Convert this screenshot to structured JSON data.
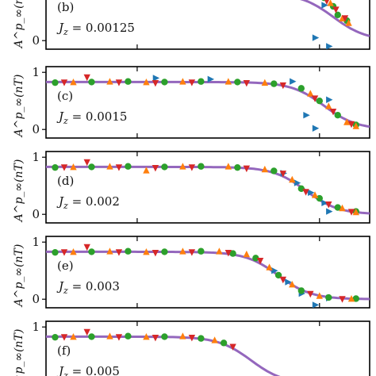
{
  "chart_data": [
    {
      "type": "scatter",
      "panel_label": "(b)",
      "annotation": "J_z = 0.00125",
      "annotation_var": "J",
      "annotation_sub": "z",
      "annotation_val": "= 0.00125",
      "ylabel": "A^p_∞(nT)",
      "yticks": [
        "0"
      ],
      "ylim": [
        -0.15,
        1.1
      ],
      "fit_curve": {
        "plateau": 0.83,
        "x0": 3.15,
        "width": 0.18
      },
      "series": [
        {
          "name": "",
          "marker": "triangle-right",
          "color": "#1f77b4",
          "points": [
            [
              2.85,
              0.92
            ],
            [
              2.95,
              0.05
            ],
            [
              3.05,
              0.62
            ],
            [
              3.1,
              -0.1
            ]
          ]
        },
        {
          "name": "",
          "marker": "circle",
          "color": "#2ca02c",
          "points": [
            [
              3.05,
              0.75
            ],
            [
              3.15,
              0.6
            ],
            [
              3.2,
              0.45
            ],
            [
              3.3,
              0.35
            ]
          ]
        },
        {
          "name": "",
          "marker": "triangle-up",
          "color": "#ff7f0e",
          "points": [
            [
              3.12,
              0.65
            ],
            [
              3.25,
              0.38
            ],
            [
              3.32,
              0.3
            ]
          ]
        },
        {
          "name": "",
          "marker": "triangle-down",
          "color": "#d62728",
          "points": [
            [
              3.08,
              0.7
            ],
            [
              3.18,
              0.55
            ],
            [
              3.28,
              0.4
            ]
          ]
        }
      ]
    },
    {
      "type": "scatter",
      "panel_label": "(c)",
      "annotation": "J_z = 0.0015",
      "annotation_var": "J",
      "annotation_sub": "z",
      "annotation_val": "= 0.0015",
      "ylabel": "A^p_∞(nT)",
      "yticks": [
        "1",
        "0"
      ],
      "ylim": [
        -0.15,
        1.1
      ],
      "fit_curve": {
        "plateau": 0.83,
        "x0": 3.05,
        "width": 0.18
      },
      "series": [
        {
          "name": "",
          "marker": "triangle-right",
          "color": "#1f77b4",
          "points": [
            [
              1.2,
              0.9
            ],
            [
              1.8,
              0.88
            ],
            [
              2.7,
              0.84
            ],
            [
              2.85,
              0.25
            ],
            [
              2.95,
              0.02
            ],
            [
              3.1,
              0.52
            ]
          ]
        },
        {
          "name": "",
          "marker": "circle",
          "color": "#2ca02c",
          "points": [
            [
              0.1,
              0.82
            ],
            [
              0.5,
              0.83
            ],
            [
              0.9,
              0.84
            ],
            [
              1.3,
              0.83
            ],
            [
              1.7,
              0.84
            ],
            [
              2.1,
              0.83
            ],
            [
              2.5,
              0.8
            ],
            [
              2.8,
              0.72
            ],
            [
              3.0,
              0.5
            ],
            [
              3.2,
              0.25
            ],
            [
              3.4,
              0.08
            ]
          ]
        },
        {
          "name": "",
          "marker": "triangle-up",
          "color": "#ff7f0e",
          "points": [
            [
              0.3,
              0.82
            ],
            [
              0.7,
              0.83
            ],
            [
              1.1,
              0.82
            ],
            [
              1.5,
              0.83
            ],
            [
              2.0,
              0.83
            ],
            [
              2.4,
              0.81
            ],
            [
              2.9,
              0.62
            ],
            [
              3.1,
              0.4
            ],
            [
              3.3,
              0.12
            ],
            [
              3.4,
              0.05
            ]
          ]
        },
        {
          "name": "",
          "marker": "triangle-down",
          "color": "#d62728",
          "points": [
            [
              0.2,
              0.83
            ],
            [
              0.45,
              0.92
            ],
            [
              0.8,
              0.83
            ],
            [
              1.2,
              0.82
            ],
            [
              1.6,
              0.83
            ],
            [
              2.2,
              0.82
            ],
            [
              2.6,
              0.78
            ],
            [
              2.95,
              0.55
            ],
            [
              3.15,
              0.32
            ],
            [
              3.35,
              0.1
            ]
          ]
        }
      ]
    },
    {
      "type": "scatter",
      "panel_label": "(d)",
      "annotation": "J_z = 0.002",
      "annotation_var": "J",
      "annotation_sub": "z",
      "annotation_val": "= 0.002",
      "ylabel": "A^p_∞(nT)",
      "yticks": [
        "1",
        "0"
      ],
      "ylim": [
        -0.15,
        1.1
      ],
      "fit_curve": {
        "plateau": 0.83,
        "x0": 2.85,
        "width": 0.18
      },
      "series": [
        {
          "name": "",
          "marker": "triangle-right",
          "color": "#1f77b4",
          "points": [
            [
              2.6,
              0.72
            ],
            [
              2.75,
              0.55
            ],
            [
              2.9,
              0.38
            ],
            [
              3.05,
              0.2
            ],
            [
              3.1,
              0.05
            ]
          ]
        },
        {
          "name": "",
          "marker": "circle",
          "color": "#2ca02c",
          "points": [
            [
              0.1,
              0.82
            ],
            [
              0.5,
              0.83
            ],
            [
              0.9,
              0.84
            ],
            [
              1.3,
              0.83
            ],
            [
              1.7,
              0.84
            ],
            [
              2.1,
              0.82
            ],
            [
              2.5,
              0.76
            ],
            [
              2.8,
              0.45
            ],
            [
              3.0,
              0.28
            ],
            [
              3.2,
              0.12
            ],
            [
              3.4,
              0.05
            ]
          ]
        },
        {
          "name": "",
          "marker": "triangle-up",
          "color": "#ff7f0e",
          "points": [
            [
              0.3,
              0.82
            ],
            [
              0.7,
              0.83
            ],
            [
              1.1,
              0.76
            ],
            [
              1.5,
              0.83
            ],
            [
              2.0,
              0.83
            ],
            [
              2.4,
              0.78
            ],
            [
              2.7,
              0.6
            ],
            [
              2.95,
              0.33
            ],
            [
              3.25,
              0.1
            ],
            [
              3.4,
              0.03
            ]
          ]
        },
        {
          "name": "",
          "marker": "triangle-down",
          "color": "#d62728",
          "points": [
            [
              0.2,
              0.83
            ],
            [
              0.45,
              0.92
            ],
            [
              0.8,
              0.83
            ],
            [
              1.2,
              0.82
            ],
            [
              1.6,
              0.83
            ],
            [
              2.2,
              0.81
            ],
            [
              2.6,
              0.72
            ],
            [
              2.85,
              0.4
            ],
            [
              3.1,
              0.18
            ],
            [
              3.35,
              0.05
            ]
          ]
        }
      ]
    },
    {
      "type": "scatter",
      "panel_label": "(e)",
      "annotation": "J_z = 0.003",
      "annotation_var": "J",
      "annotation_sub": "z",
      "annotation_val": "= 0.003",
      "ylabel": "A^p_∞(nT)",
      "yticks": [
        "1",
        "0"
      ],
      "ylim": [
        -0.15,
        1.1
      ],
      "fit_curve": {
        "plateau": 0.83,
        "x0": 2.55,
        "width": 0.18
      },
      "series": [
        {
          "name": "",
          "marker": "triangle-right",
          "color": "#1f77b4",
          "points": [
            [
              2.5,
              0.5
            ],
            [
              2.65,
              0.3
            ],
            [
              2.8,
              0.1
            ],
            [
              2.95,
              -0.1
            ],
            [
              3.1,
              0.02
            ]
          ]
        },
        {
          "name": "",
          "marker": "circle",
          "color": "#2ca02c",
          "points": [
            [
              0.1,
              0.82
            ],
            [
              0.5,
              0.83
            ],
            [
              0.9,
              0.84
            ],
            [
              1.3,
              0.83
            ],
            [
              1.7,
              0.84
            ],
            [
              2.05,
              0.8
            ],
            [
              2.3,
              0.72
            ],
            [
              2.55,
              0.42
            ],
            [
              2.8,
              0.15
            ],
            [
              3.1,
              0.03
            ],
            [
              3.4,
              0.01
            ]
          ]
        },
        {
          "name": "",
          "marker": "triangle-up",
          "color": "#ff7f0e",
          "points": [
            [
              0.3,
              0.82
            ],
            [
              0.7,
              0.83
            ],
            [
              1.1,
              0.82
            ],
            [
              1.5,
              0.83
            ],
            [
              1.9,
              0.83
            ],
            [
              2.2,
              0.78
            ],
            [
              2.45,
              0.55
            ],
            [
              2.7,
              0.25
            ],
            [
              3.0,
              0.05
            ],
            [
              3.35,
              0.0
            ]
          ]
        },
        {
          "name": "",
          "marker": "triangle-down",
          "color": "#d62728",
          "points": [
            [
              0.2,
              0.83
            ],
            [
              0.45,
              0.92
            ],
            [
              0.8,
              0.83
            ],
            [
              1.2,
              0.82
            ],
            [
              1.6,
              0.83
            ],
            [
              2.0,
              0.82
            ],
            [
              2.35,
              0.68
            ],
            [
              2.6,
              0.35
            ],
            [
              2.9,
              0.1
            ],
            [
              3.25,
              0.01
            ]
          ]
        }
      ]
    },
    {
      "type": "scatter",
      "panel_label": "(f)",
      "annotation": "J_z = 0.005",
      "annotation_var": "J",
      "annotation_sub": "z",
      "annotation_val": "= 0.005",
      "ylabel": "A^p_∞(nT)",
      "yticks": [
        "1"
      ],
      "ylim": [
        -0.15,
        1.1
      ],
      "fit_curve": {
        "plateau": 0.83,
        "x0": 2.25,
        "width": 0.18
      },
      "series": [
        {
          "name": "",
          "marker": "circle",
          "color": "#2ca02c",
          "points": [
            [
              0.1,
              0.82
            ],
            [
              0.5,
              0.83
            ],
            [
              0.9,
              0.84
            ],
            [
              1.3,
              0.83
            ],
            [
              1.7,
              0.8
            ],
            [
              1.95,
              0.72
            ]
          ]
        },
        {
          "name": "",
          "marker": "triangle-up",
          "color": "#ff7f0e",
          "points": [
            [
              0.3,
              0.82
            ],
            [
              0.7,
              0.83
            ],
            [
              1.1,
              0.82
            ],
            [
              1.5,
              0.83
            ],
            [
              1.85,
              0.76
            ]
          ]
        },
        {
          "name": "",
          "marker": "triangle-down",
          "color": "#d62728",
          "points": [
            [
              0.2,
              0.83
            ],
            [
              0.45,
              0.92
            ],
            [
              0.8,
              0.83
            ],
            [
              1.2,
              0.82
            ],
            [
              1.6,
              0.82
            ],
            [
              2.05,
              0.66
            ]
          ]
        }
      ]
    }
  ],
  "xlim": [
    0,
    3.55
  ],
  "xtick_values": [
    1.0,
    3.0
  ],
  "colors": {
    "fit": "#9467bd",
    "axis": "#000000"
  }
}
